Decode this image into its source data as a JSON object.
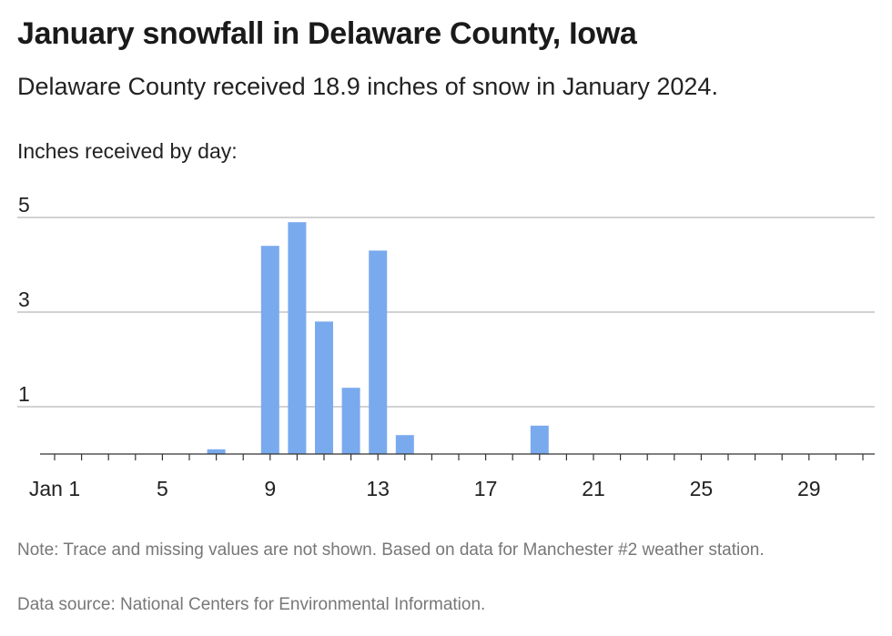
{
  "header": {
    "title": "January snowfall in Delaware County, Iowa",
    "subtitle": "Delaware County received 18.9 inches of snow in January 2024.",
    "chart_label": "Inches received by day:"
  },
  "footer": {
    "note": "Note: Trace and missing values are not shown. Based on data for Manchester #2 weather station.",
    "source": "Data source: National Centers for Environmental Information."
  },
  "colors": {
    "bar": "#7aaaee",
    "grid": "#b8b8b8",
    "axis": "#333333"
  },
  "chart_data": {
    "type": "bar",
    "title": "January snowfall in Delaware County, Iowa",
    "subtitle": "Delaware County received 18.9 inches of snow in January 2024.",
    "ylabel": "Inches received by day:",
    "xlabel": "",
    "grid": true,
    "xlim": [
      1,
      31
    ],
    "ylim": [
      0,
      5
    ],
    "yticks": [
      1,
      3,
      5
    ],
    "xticks": [
      1,
      5,
      9,
      13,
      17,
      21,
      25,
      29
    ],
    "xtick_labels": [
      "Jan 1",
      "5",
      "9",
      "13",
      "17",
      "21",
      "25",
      "29"
    ],
    "days": [
      7,
      9,
      10,
      11,
      12,
      13,
      14,
      19
    ],
    "values": [
      0.1,
      4.4,
      4.9,
      2.8,
      1.4,
      4.3,
      0.4,
      0.6
    ]
  }
}
